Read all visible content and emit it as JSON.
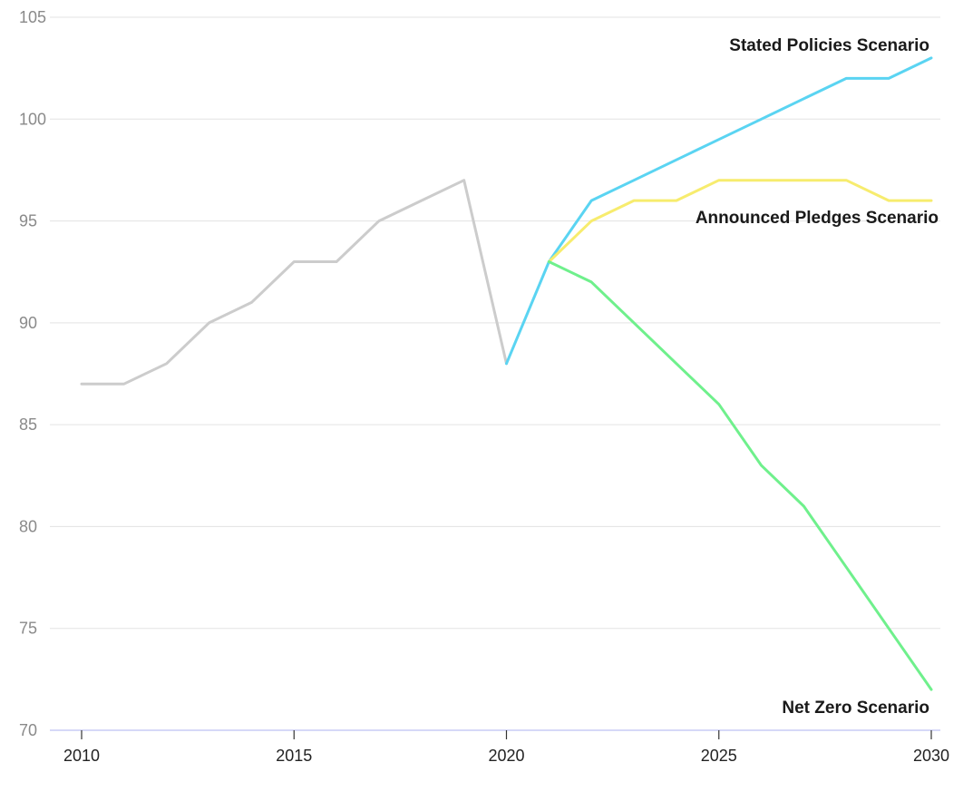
{
  "chart_data": {
    "type": "line",
    "title": "",
    "xlabel": "",
    "ylabel": "",
    "ylim": [
      70,
      105
    ],
    "xlim": [
      2010,
      2030
    ],
    "y_ticks": [
      "70",
      "75",
      "80",
      "85",
      "90",
      "95",
      "100",
      "105"
    ],
    "x_ticks": [
      "2010",
      "2015",
      "2020",
      "2025",
      "2030"
    ],
    "grid": "horizontal",
    "series": [
      {
        "key": "historical",
        "color": "#cccccc",
        "x": [
          2010,
          2011,
          2012,
          2013,
          2014,
          2015,
          2016,
          2017,
          2018,
          2019,
          2020
        ],
        "values": [
          87,
          87,
          88,
          90,
          91,
          93,
          93,
          95,
          96,
          97,
          88
        ]
      },
      {
        "key": "stated",
        "name": "Stated Policies Scenario",
        "color": "#5ad4f2",
        "x": [
          2020,
          2021,
          2022,
          2023,
          2024,
          2025,
          2026,
          2027,
          2028,
          2029,
          2030
        ],
        "values": [
          88,
          93,
          96,
          97,
          98,
          99,
          100,
          101,
          102,
          102,
          103
        ]
      },
      {
        "key": "announced",
        "name": "Announced Pledges Scenario",
        "color": "#f7ec6e",
        "x": [
          2021,
          2022,
          2023,
          2024,
          2025,
          2026,
          2027,
          2028,
          2029,
          2030
        ],
        "values": [
          93,
          95,
          96,
          96,
          97,
          97,
          97,
          97,
          96,
          96
        ]
      },
      {
        "key": "netzero",
        "name": "Net Zero Scenario",
        "color": "#6ff08c",
        "x": [
          2021,
          2022,
          2023,
          2024,
          2025,
          2026,
          2027,
          2028,
          2029,
          2030
        ],
        "values": [
          93,
          92,
          90,
          88,
          86,
          83,
          81,
          78,
          75,
          72
        ]
      }
    ]
  }
}
